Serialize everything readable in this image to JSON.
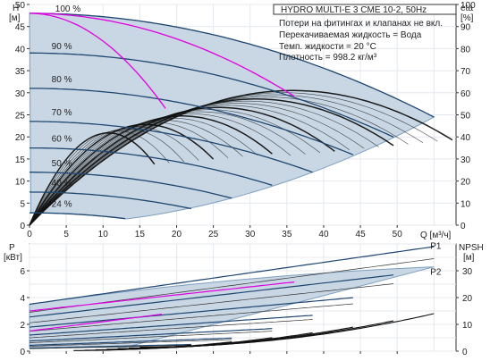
{
  "chart_data": {
    "type": "line",
    "info_box": {
      "title": "HYDRO MULTI-E 3 CME 10-2, 50Hz",
      "lines": [
        "Потери на фитингах и клапанах не вкл.",
        "Перекачиваемая жидкость = Вода",
        "Темп. жидкости = 20 °C",
        "Плотность = 998.2 кг/м³"
      ]
    },
    "top_chart": {
      "ylabel_left": "H",
      "yunit_left": "[м]",
      "ylabel_right": "eta",
      "yunit_right": "[%]",
      "xlabel": "Q [м³/ч]",
      "xlim": [
        0,
        58
      ],
      "ylim_left": [
        0,
        50
      ],
      "ylim_right": [
        0,
        100
      ],
      "x_ticks": [
        "0",
        "5",
        "10",
        "15",
        "20",
        "25",
        "30",
        "35",
        "40",
        "45",
        "50"
      ],
      "y_ticks_left": [
        "0",
        "5",
        "10",
        "15",
        "20",
        "25",
        "30",
        "35",
        "40",
        "45",
        "50"
      ],
      "y_ticks_right": [
        "0",
        "10",
        "20",
        "30",
        "40",
        "50",
        "60",
        "70",
        "80",
        "90",
        "100"
      ],
      "speed_labels": [
        "100 %",
        "90 %",
        "80 %",
        "70 %",
        "60 %",
        "50 %",
        "40 %",
        "24 %"
      ],
      "head_curves": [
        {
          "speed": 100,
          "shutoff_head": 48,
          "max_flow": 55
        },
        {
          "speed": 90,
          "shutoff_head": 39,
          "max_flow": 49.5
        },
        {
          "speed": 80,
          "shutoff_head": 31,
          "max_flow": 44
        },
        {
          "speed": 70,
          "shutoff_head": 23.5,
          "max_flow": 38.5
        },
        {
          "speed": 60,
          "shutoff_head": 17.5,
          "max_flow": 33
        },
        {
          "speed": 50,
          "shutoff_head": 12,
          "max_flow": 27.5
        },
        {
          "speed": 40,
          "shutoff_head": 7.5,
          "max_flow": 22
        },
        {
          "speed": 24,
          "shutoff_head": 2.8,
          "max_flow": 13.2
        }
      ],
      "efficiency_peak": 61
    },
    "bottom_chart": {
      "ylabel_left": "P",
      "yunit_left": "[кВт]",
      "ylabel_right": "NPSH",
      "yunit_right": "[м]",
      "xlim": [
        0,
        58
      ],
      "ylim_left": [
        0,
        8
      ],
      "ylim_right": [
        0,
        40
      ],
      "y_ticks_left": [
        "0",
        "2",
        "4",
        "6"
      ],
      "y_ticks_right": [
        "0",
        "10",
        "20",
        "30"
      ],
      "curve_labels": [
        "P1",
        "P2"
      ],
      "p1_at_full_speed": [
        [
          0,
          3.5
        ],
        [
          55,
          7.8
        ]
      ],
      "p2_at_full_speed": [
        [
          0,
          2.9
        ],
        [
          55,
          6.9
        ]
      ],
      "npsh_at_full_speed": [
        [
          15,
          1.5
        ],
        [
          55,
          14
        ]
      ]
    },
    "colors": {
      "area_fill": "#c9d7e4",
      "area_edge": "#7f9fbf",
      "head_curve": "#1f4670",
      "efficiency_curve": "#111111",
      "highlight": "#e000e0",
      "grid": "#e4e8ee"
    }
  }
}
